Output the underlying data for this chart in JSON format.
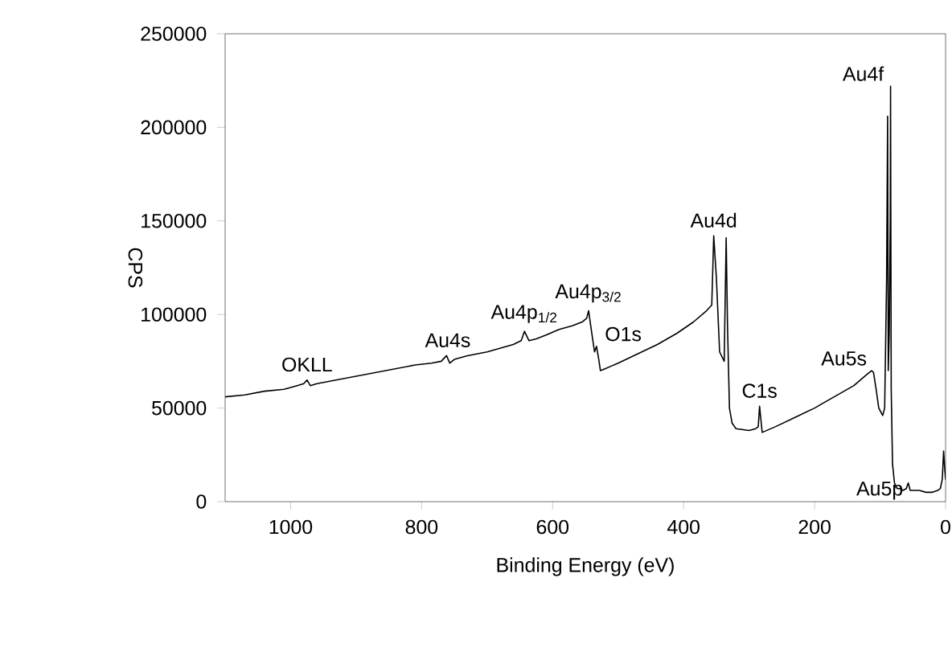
{
  "chart_data": {
    "type": "line",
    "xlabel": "Binding Energy (eV)",
    "ylabel": "CPS",
    "xlim": [
      1100,
      0
    ],
    "xticks": [
      1000,
      800,
      600,
      400,
      200,
      0
    ],
    "ylim": [
      0,
      250000
    ],
    "yticks": [
      0,
      50000,
      100000,
      150000,
      200000,
      250000
    ],
    "grid": false,
    "marker": "none",
    "line_style": "solid",
    "series": [
      {
        "color": "#000000",
        "x": [
          1100,
          1070,
          1040,
          1010,
          990,
          980,
          975,
          970,
          960,
          930,
          900,
          870,
          840,
          810,
          785,
          770,
          762,
          757,
          750,
          730,
          700,
          680,
          660,
          648,
          643,
          636,
          625,
          610,
          590,
          570,
          555,
          548,
          545,
          541,
          536,
          533,
          530,
          527,
          520,
          500,
          470,
          440,
          410,
          385,
          365,
          357,
          354,
          350,
          345,
          338,
          335,
          333,
          330,
          326,
          320,
          300,
          290,
          286,
          284,
          280,
          260,
          230,
          200,
          170,
          140,
          120,
          113,
          110,
          106,
          102,
          96,
          93,
          90,
          88.5,
          87.5,
          86,
          84.5,
          84,
          83,
          81,
          78,
          74,
          70,
          65,
          60,
          57,
          54,
          50,
          40,
          30,
          20,
          12,
          8,
          5,
          3,
          1,
          0
        ],
        "values": [
          56000,
          57000,
          59000,
          60000,
          62000,
          63000,
          65000,
          62000,
          63000,
          65000,
          67000,
          69000,
          71000,
          73000,
          74000,
          75000,
          78000,
          74000,
          76000,
          78000,
          80000,
          82000,
          84000,
          86000,
          91000,
          86000,
          87000,
          89000,
          92000,
          94000,
          96000,
          98000,
          102000,
          92000,
          80000,
          83000,
          77000,
          70000,
          71000,
          74000,
          79000,
          84000,
          90000,
          96000,
          102000,
          105000,
          142000,
          120000,
          80000,
          75000,
          141000,
          95000,
          50000,
          42000,
          39000,
          38000,
          39000,
          40000,
          51000,
          37000,
          40000,
          45000,
          50000,
          56000,
          62000,
          68000,
          70000,
          69000,
          60000,
          50000,
          46000,
          50000,
          120000,
          206000,
          70000,
          90000,
          150000,
          222000,
          60000,
          20000,
          10000,
          7000,
          7000,
          6000,
          7000,
          10000,
          6000,
          6000,
          6000,
          5000,
          5000,
          6000,
          7000,
          12000,
          27000,
          16000,
          12000
        ]
      }
    ],
    "annotations": [
      {
        "text": "OKLL",
        "x": 975,
        "y": 65000
      },
      {
        "text": "Au4s",
        "x": 760,
        "y": 78000
      },
      {
        "text": "Au4p$_{1/2}$",
        "x": 643,
        "y": 91000
      },
      {
        "text": "Au4p$_{3/2}$",
        "x": 545,
        "y": 102000
      },
      {
        "text": "O1s",
        "x": 533,
        "y": 83000
      },
      {
        "text": "Au4d",
        "x": 354,
        "y": 142000
      },
      {
        "text": "C1s",
        "x": 284,
        "y": 51000
      },
      {
        "text": "Au5s",
        "x": 110,
        "y": 70000
      },
      {
        "text": "Au4f",
        "x": 84,
        "y": 222000
      },
      {
        "text": "Au5p",
        "x": 57,
        "y": 10000
      }
    ]
  }
}
